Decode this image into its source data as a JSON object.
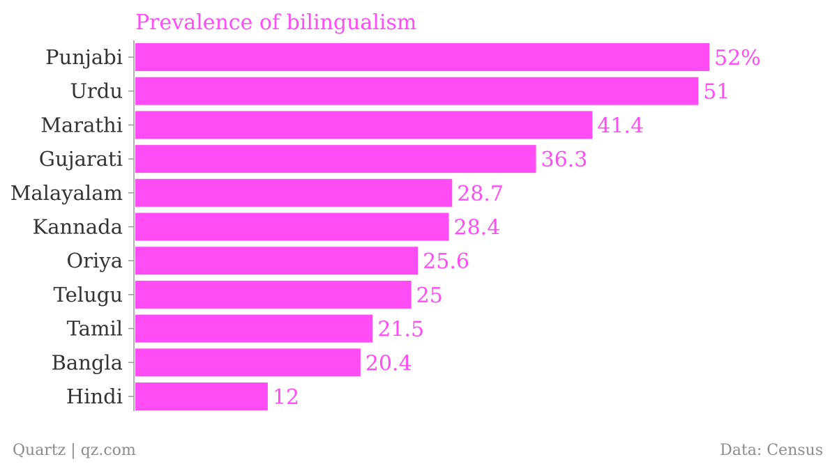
{
  "chart_data": {
    "type": "bar",
    "orientation": "horizontal",
    "title": "Prevalence of bilingualism",
    "categories": [
      "Punjabi",
      "Urdu",
      "Marathi",
      "Gujarati",
      "Malayalam",
      "Kannada",
      "Oriya",
      "Telugu",
      "Tamil",
      "Bangla",
      "Hindi"
    ],
    "values": [
      52,
      51,
      41.4,
      36.3,
      28.7,
      28.4,
      25.6,
      25,
      21.5,
      20.4,
      12
    ],
    "value_labels": [
      "52%",
      "51",
      "41.4",
      "36.3",
      "28.7",
      "28.4",
      "25.6",
      "25",
      "21.5",
      "20.4",
      "12"
    ],
    "unit": "%",
    "xlim": [
      0,
      52
    ],
    "grid": false,
    "colors": {
      "bar": "#ff4cf5",
      "title": "#ff4cf5",
      "value_label": "#ff4cf5",
      "category_label": "#333333",
      "axis": "#999999"
    }
  },
  "footer": {
    "source_left": "Quartz | qz.com",
    "source_right": "Data: Census"
  }
}
